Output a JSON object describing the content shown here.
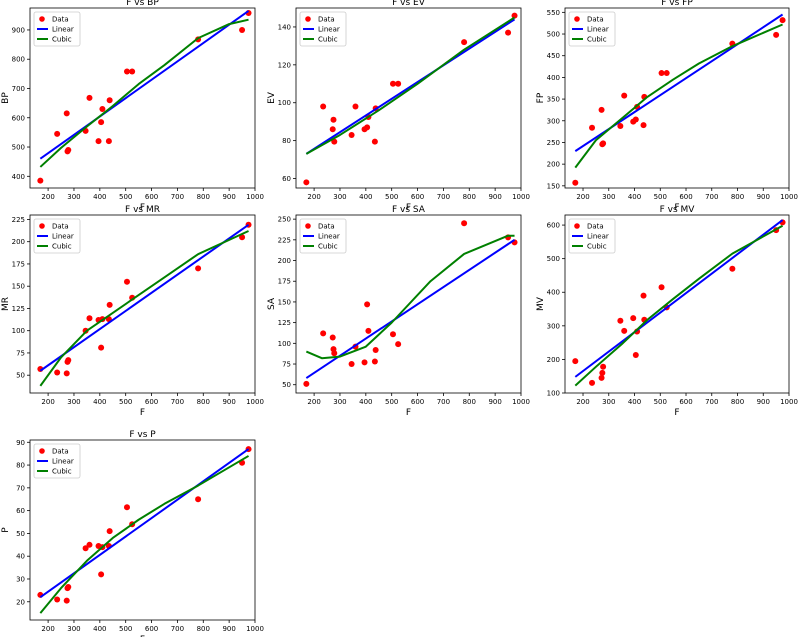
{
  "legend": {
    "data": "Data",
    "linear": "Linear",
    "cubic": "Cubic"
  },
  "colors": {
    "data": "#ff0000",
    "linear": "#0000ff",
    "cubic": "#008000"
  },
  "chart_data": [
    {
      "type": "scatter",
      "title": "F vs BP",
      "xlabel": "F",
      "ylabel": "BP",
      "xlim": [
        130,
        1000
      ],
      "ylim": [
        360,
        975
      ],
      "xticks": [
        200,
        300,
        400,
        500,
        600,
        700,
        800,
        900,
        1000
      ],
      "yticks": [
        400,
        500,
        600,
        700,
        800,
        900
      ],
      "x": [
        170,
        235,
        272,
        275,
        278,
        345,
        360,
        395,
        405,
        410,
        435,
        438,
        505,
        525,
        780,
        950,
        975
      ],
      "y": [
        385,
        545,
        615,
        485,
        490,
        555,
        668,
        520,
        585,
        630,
        520,
        660,
        758,
        758,
        868,
        900,
        958
      ],
      "linear": [
        [
          170,
          460
        ],
        [
          975,
          965
        ]
      ],
      "cubic": [
        [
          170,
          432
        ],
        [
          250,
          497
        ],
        [
          350,
          570
        ],
        [
          450,
          640
        ],
        [
          550,
          715
        ],
        [
          650,
          780
        ],
        [
          780,
          872
        ],
        [
          900,
          920
        ],
        [
          975,
          935
        ]
      ],
      "legend_position": "upper left"
    },
    {
      "type": "scatter",
      "title": "F vs EV",
      "xlabel": "F",
      "ylabel": "EV",
      "xlim": [
        130,
        1000
      ],
      "ylim": [
        55,
        150
      ],
      "xticks": [
        200,
        300,
        400,
        500,
        600,
        700,
        800,
        900,
        1000
      ],
      "yticks": [
        60,
        80,
        100,
        120,
        140
      ],
      "x": [
        170,
        235,
        272,
        275,
        278,
        345,
        360,
        395,
        405,
        410,
        435,
        438,
        505,
        525,
        780,
        950,
        975
      ],
      "y": [
        58,
        98,
        86,
        91,
        79.5,
        83,
        98,
        86,
        87,
        92.5,
        79.5,
        97,
        110,
        110,
        132,
        137,
        146
      ],
      "linear": [
        [
          170,
          73
        ],
        [
          975,
          144
        ]
      ],
      "cubic": [
        [
          170,
          73
        ],
        [
          300,
          83
        ],
        [
          450,
          96
        ],
        [
          600,
          110
        ],
        [
          780,
          128
        ],
        [
          975,
          145
        ]
      ],
      "legend_position": "upper left"
    },
    {
      "type": "scatter",
      "title": "F vs FP",
      "xlabel": "F",
      "ylabel": "FP",
      "xlim": [
        130,
        1000
      ],
      "ylim": [
        145,
        560
      ],
      "xticks": [
        200,
        300,
        400,
        500,
        600,
        700,
        800,
        900,
        1000
      ],
      "yticks": [
        150,
        200,
        250,
        300,
        350,
        400,
        450,
        500,
        550
      ],
      "x": [
        170,
        235,
        272,
        275,
        278,
        345,
        360,
        395,
        405,
        410,
        435,
        438,
        505,
        525,
        780,
        950,
        975
      ],
      "y": [
        157,
        284,
        325,
        246,
        248,
        288,
        358,
        298,
        303,
        332,
        290,
        355,
        410,
        410,
        478,
        498,
        532
      ],
      "linear": [
        [
          170,
          230
        ],
        [
          975,
          545
        ]
      ],
      "cubic": [
        [
          170,
          192
        ],
        [
          250,
          255
        ],
        [
          350,
          305
        ],
        [
          450,
          355
        ],
        [
          550,
          395
        ],
        [
          650,
          432
        ],
        [
          780,
          472
        ],
        [
          975,
          522
        ]
      ],
      "legend_position": "upper left"
    },
    {
      "type": "scatter",
      "title": "F vs MR",
      "xlabel": "F",
      "ylabel": "MR",
      "xlim": [
        130,
        1000
      ],
      "ylim": [
        30,
        230
      ],
      "xticks": [
        200,
        300,
        400,
        500,
        600,
        700,
        800,
        900,
        1000
      ],
      "yticks": [
        50,
        75,
        100,
        125,
        150,
        175,
        200,
        225
      ],
      "x": [
        170,
        235,
        272,
        275,
        278,
        345,
        360,
        395,
        405,
        410,
        435,
        438,
        505,
        525,
        780,
        950,
        975
      ],
      "y": [
        57,
        53,
        52,
        65,
        67,
        100,
        114,
        112,
        81,
        113,
        113,
        129,
        155,
        137,
        170,
        205,
        219
      ],
      "linear": [
        [
          170,
          55
        ],
        [
          975,
          219
        ]
      ],
      "cubic": [
        [
          170,
          38
        ],
        [
          250,
          70
        ],
        [
          350,
          100
        ],
        [
          450,
          120
        ],
        [
          550,
          140
        ],
        [
          650,
          160
        ],
        [
          780,
          186
        ],
        [
          975,
          212
        ]
      ],
      "legend_position": "upper left"
    },
    {
      "type": "scatter",
      "title": "F vs SA",
      "xlabel": "F",
      "ylabel": "SA",
      "xlim": [
        130,
        1000
      ],
      "ylim": [
        40,
        255
      ],
      "xticks": [
        200,
        300,
        400,
        500,
        600,
        700,
        800,
        900,
        1000
      ],
      "yticks": [
        50,
        75,
        100,
        125,
        150,
        175,
        200,
        225,
        250
      ],
      "x": [
        170,
        235,
        272,
        275,
        278,
        345,
        360,
        395,
        405,
        410,
        435,
        438,
        505,
        525,
        780,
        950,
        975
      ],
      "y": [
        51,
        112,
        107,
        93,
        88,
        75,
        96,
        77,
        147,
        115,
        78,
        92,
        111,
        99,
        245,
        228,
        222
      ],
      "linear": [
        [
          170,
          58
        ],
        [
          975,
          225
        ]
      ],
      "cubic": [
        [
          170,
          90
        ],
        [
          230,
          82
        ],
        [
          300,
          84
        ],
        [
          400,
          96
        ],
        [
          500,
          125
        ],
        [
          650,
          175
        ],
        [
          780,
          208
        ],
        [
          950,
          230
        ],
        [
          975,
          230
        ]
      ],
      "legend_position": "upper left"
    },
    {
      "type": "scatter",
      "title": "F vs MV",
      "xlabel": "F",
      "ylabel": "MV",
      "xlim": [
        130,
        1000
      ],
      "ylim": [
        100,
        630
      ],
      "xticks": [
        200,
        300,
        400,
        500,
        600,
        700,
        800,
        900,
        1000
      ],
      "yticks": [
        100,
        200,
        300,
        400,
        500,
        600
      ],
      "x": [
        170,
        235,
        272,
        275,
        278,
        345,
        360,
        395,
        405,
        410,
        435,
        438,
        505,
        525,
        780,
        950,
        975
      ],
      "y": [
        195,
        130,
        145,
        160,
        178,
        315,
        285,
        323,
        213,
        283,
        390,
        318,
        415,
        355,
        470,
        585,
        608
      ],
      "linear": [
        [
          170,
          148
        ],
        [
          975,
          615
        ]
      ],
      "cubic": [
        [
          170,
          122
        ],
        [
          250,
          178
        ],
        [
          350,
          245
        ],
        [
          450,
          318
        ],
        [
          550,
          380
        ],
        [
          650,
          440
        ],
        [
          780,
          515
        ],
        [
          975,
          598
        ]
      ],
      "legend_position": "upper left"
    },
    {
      "type": "scatter",
      "title": "F vs P",
      "xlabel": "F",
      "ylabel": "P",
      "xlim": [
        130,
        1000
      ],
      "ylim": [
        12,
        91
      ],
      "xticks": [
        200,
        300,
        400,
        500,
        600,
        700,
        800,
        900,
        1000
      ],
      "yticks": [
        20,
        30,
        40,
        50,
        60,
        70,
        80,
        90
      ],
      "x": [
        170,
        235,
        272,
        275,
        278,
        345,
        360,
        395,
        405,
        410,
        435,
        438,
        505,
        525,
        780,
        950,
        975
      ],
      "y": [
        23,
        21,
        20.5,
        26,
        26.5,
        43.5,
        45,
        44.5,
        32,
        44,
        44.5,
        51,
        61.5,
        54,
        65,
        81,
        87
      ],
      "linear": [
        [
          170,
          22
        ],
        [
          975,
          87
        ]
      ],
      "cubic": [
        [
          170,
          15
        ],
        [
          250,
          26
        ],
        [
          350,
          38
        ],
        [
          450,
          48
        ],
        [
          550,
          56
        ],
        [
          650,
          63
        ],
        [
          780,
          71
        ],
        [
          975,
          84
        ]
      ],
      "legend_position": "upper left"
    }
  ]
}
